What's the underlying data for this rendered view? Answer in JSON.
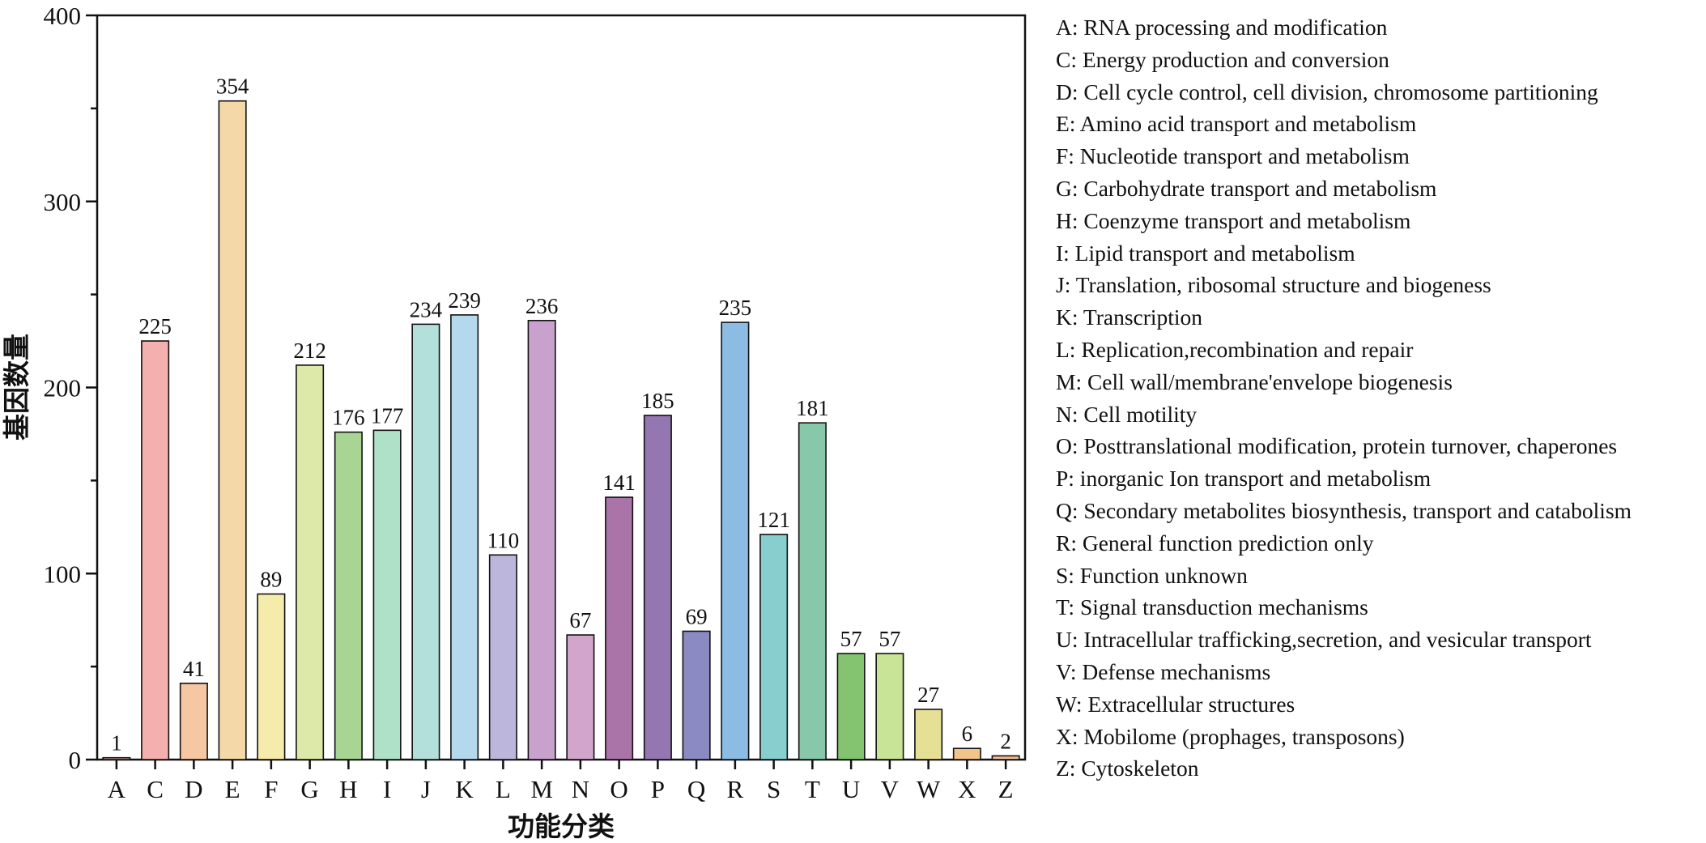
{
  "chart_data": {
    "type": "bar",
    "title": "",
    "xlabel": "功能分类",
    "ylabel": "基因数量",
    "ylim": [
      0,
      400
    ],
    "yticks": [
      0,
      100,
      200,
      300,
      400
    ],
    "grid": false,
    "legend_position": "right",
    "categories": [
      "A",
      "C",
      "D",
      "E",
      "F",
      "G",
      "H",
      "I",
      "J",
      "K",
      "L",
      "M",
      "N",
      "O",
      "P",
      "Q",
      "R",
      "S",
      "T",
      "U",
      "V",
      "W",
      "X",
      "Z"
    ],
    "values": [
      1,
      225,
      41,
      354,
      89,
      212,
      176,
      177,
      234,
      239,
      110,
      236,
      67,
      141,
      185,
      69,
      235,
      121,
      181,
      57,
      57,
      27,
      6,
      2
    ],
    "value_labels": [
      "1",
      "225",
      "41",
      "354",
      "89",
      "212",
      "176",
      "177",
      "234",
      "239",
      "110",
      "236",
      "67",
      "141",
      "185",
      "69",
      "235",
      "121",
      "181",
      "57",
      "57",
      "27",
      "6",
      "2"
    ],
    "colors": [
      "#f5c2b8",
      "#f4b0ae",
      "#f5c7a3",
      "#f5d8a8",
      "#f5ebaa",
      "#dce9a8",
      "#a8d594",
      "#afe0c8",
      "#b4e0dc",
      "#b4d9ec",
      "#bcb6dc",
      "#c8a2cc",
      "#d2a6cc",
      "#aa74a8",
      "#9476b0",
      "#8c8ac2",
      "#8cbce4",
      "#88cece",
      "#88c8aa",
      "#84c470",
      "#c8e496",
      "#e6e096",
      "#f1c489",
      "#f3bc98"
    ],
    "legend": [
      "A: RNA processing and modification",
      "C: Energy production and conversion",
      "D: Cell cycle control, cell division, chromosome partitioning",
      "E: Amino acid transport and metabolism",
      "F: Nucleotide transport and metabolism",
      "G: Carbohydrate transport and metabolism",
      "H: Coenzyme transport and metabolism",
      "I: Lipid transport and metabolism",
      "J: Translation, ribosomal structure and biogeness",
      "K: Transcription",
      "L: Replication,recombination and repair",
      "M: Cell wall/membrane'envelope biogenesis",
      "N: Cell motility",
      "O: Posttranslational modification, protein turnover, chaperones",
      "P: inorganic Ion transport and metabolism",
      "Q: Secondary metabolites biosynthesis, transport and catabolism",
      "R: General function prediction only",
      "S: Function unknown",
      "T: Signal transduction mechanisms",
      "U: Intracellular trafficking,secretion, and vesicular transport",
      "V: Defense mechanisms",
      "W: Extracellular structures",
      "X: Mobilome (prophages, transposons)",
      "Z: Cytoskeleton"
    ]
  }
}
